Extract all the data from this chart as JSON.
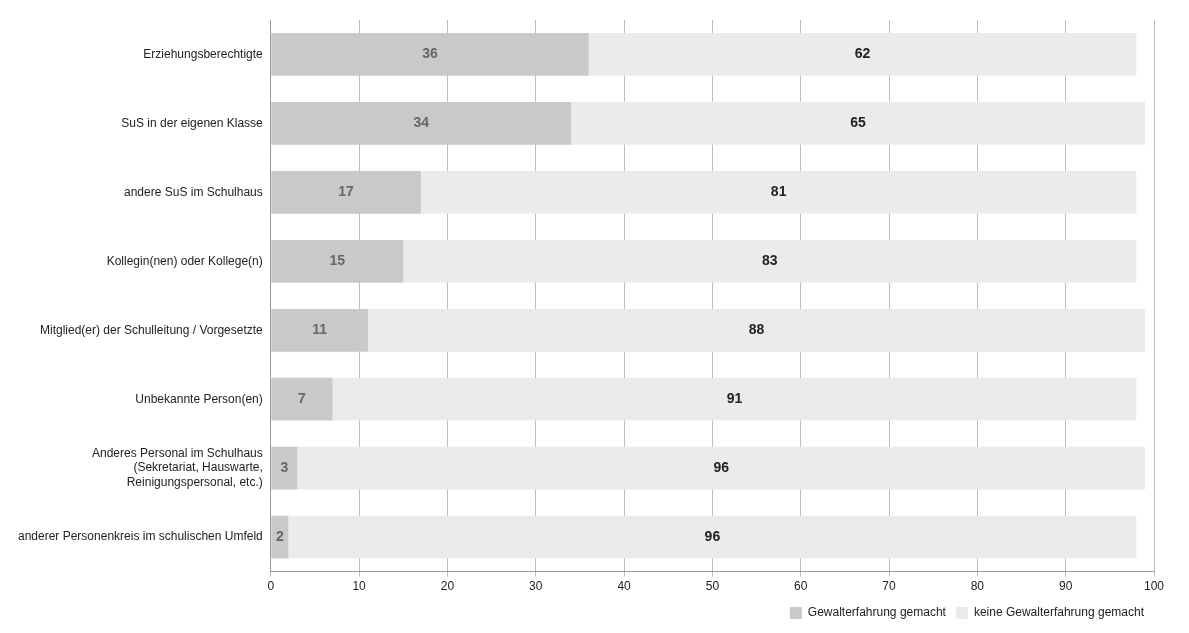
{
  "chart_data": {
    "type": "bar",
    "orientation": "horizontal",
    "stacked": true,
    "categories": [
      "Erziehungsberechtigte",
      "SuS in der eigenen Klasse",
      "andere SuS im Schulhaus",
      "Kollegin(nen) oder Kollege(n)",
      "Mitglied(er) der Schulleitung / Vorgesetzte",
      "Unbekannte Person(en)",
      "Anderes Personal im Schulhaus (Sekretariat, Hauswarte, Reinigungspersonal, etc.)",
      "anderer Personenkreis im schulischen Umfeld"
    ],
    "series": [
      {
        "name": "Gewalterfahrung gemacht",
        "color": "#c9c9c9",
        "values": [
          36,
          34,
          17,
          15,
          11,
          7,
          3,
          2
        ]
      },
      {
        "name": "keine Gewalterfahrung gemacht",
        "color": "#ebebeb",
        "values": [
          62,
          65,
          81,
          83,
          88,
          91,
          96,
          96
        ]
      }
    ],
    "xlim": [
      0,
      100
    ],
    "xticks": [
      0,
      10,
      20,
      30,
      40,
      50,
      60,
      70,
      80,
      90,
      100
    ],
    "grid": "x",
    "legend": "bottom right",
    "data_labels": true
  }
}
